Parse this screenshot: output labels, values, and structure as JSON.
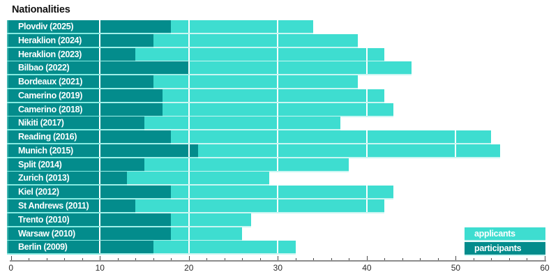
{
  "chart_data": {
    "type": "bar",
    "orientation": "horizontal",
    "title": "Nationalities",
    "categories": [
      "Plovdiv (2025)",
      "Heraklion (2024)",
      "Heraklion (2023)",
      "Bilbao (2022)",
      "Bordeaux (2021)",
      "Camerino (2019)",
      "Camerino (2018)",
      "Nikiti (2017)",
      "Reading (2016)",
      "Munich (2015)",
      "Split (2014)",
      "Zurich (2013)",
      "Kiel (2012)",
      "St Andrews (2011)",
      "Trento (2010)",
      "Warsaw (2010)",
      "Berlin (2009)"
    ],
    "series": [
      {
        "name": "applicants",
        "color": "#3eddd0",
        "values": [
          34,
          39,
          42,
          45,
          39,
          42,
          43,
          37,
          54,
          55,
          38,
          29,
          43,
          42,
          27,
          26,
          32
        ]
      },
      {
        "name": "participants",
        "color": "#038c8c",
        "values": [
          18,
          16,
          14,
          20,
          16,
          17,
          17,
          15,
          18,
          21,
          15,
          13,
          18,
          14,
          18,
          18,
          16
        ]
      }
    ],
    "xlim": [
      0,
      60
    ],
    "x_major_ticks": [
      0,
      10,
      20,
      30,
      40,
      50,
      60
    ],
    "x_minor_tick_step": 2,
    "gridlines_at": [
      10,
      20,
      30,
      40,
      50
    ],
    "grid_color": "#ffffff",
    "legend_position": "bottom-right",
    "legend_labels": [
      "applicants",
      "participants"
    ],
    "label_box_span": [
      0,
      10
    ]
  },
  "colors": {
    "applicants": "#3eddd0",
    "participants": "#038c8c",
    "label_box_edge": "#3cb4ae",
    "axis_line": "#8c8c8c",
    "tick": "#4a4a4a",
    "axis_text": "#2b2b2b",
    "title_text": "#111111",
    "background": "#ffffff"
  }
}
